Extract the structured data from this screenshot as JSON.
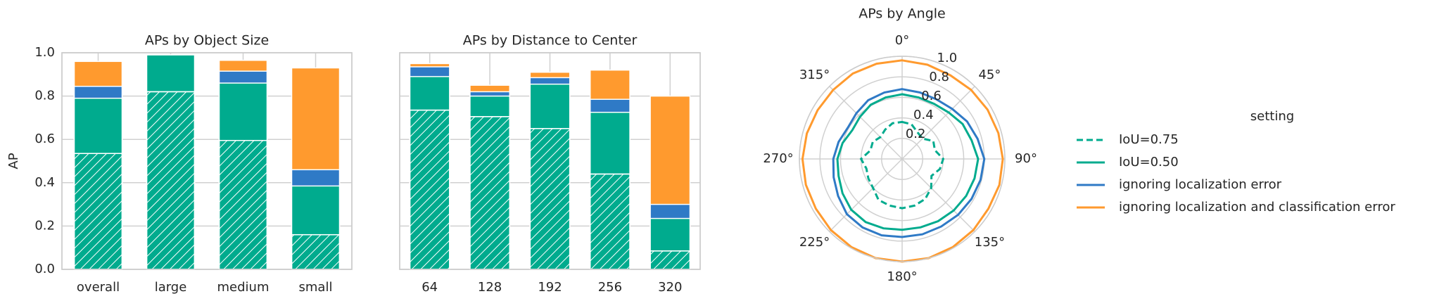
{
  "chart_data": [
    {
      "type": "bar",
      "title": "APs by Object Size",
      "ylabel": "AP",
      "categories": [
        "overall",
        "large",
        "medium",
        "small"
      ],
      "series": [
        {
          "color": "#00ab8e",
          "hatch": true,
          "values": [
            0.535,
            0.82,
            0.595,
            0.16
          ]
        },
        {
          "color": "#00ab8e",
          "values": [
            0.79,
            0.99,
            0.86,
            0.385
          ]
        },
        {
          "color": "#2f7ac6",
          "values": [
            0.845,
            0.99,
            0.915,
            0.46
          ]
        },
        {
          "color": "#ff9a2e",
          "values": [
            0.96,
            0.99,
            0.965,
            0.93
          ]
        }
      ],
      "ylim": [
        0,
        1
      ],
      "yticks": [
        {
          "value": 0,
          "label": "0.0"
        },
        0.2,
        0.4,
        0.6,
        0.8,
        {
          "value": 1,
          "label": "1.0"
        }
      ],
      "grid": true
    },
    {
      "type": "bar",
      "title": "APs by Distance to Center",
      "categories": [
        "64",
        "128",
        "192",
        "256",
        "320"
      ],
      "series": [
        {
          "color": "#00ab8e",
          "hatch": true,
          "values": [
            0.735,
            0.705,
            0.65,
            0.44,
            0.085
          ]
        },
        {
          "color": "#00ab8e",
          "values": [
            0.89,
            0.8,
            0.855,
            0.725,
            0.235
          ]
        },
        {
          "color": "#2f7ac6",
          "values": [
            0.935,
            0.82,
            0.885,
            0.785,
            0.3
          ]
        },
        {
          "color": "#ff9a2e",
          "values": [
            0.95,
            0.85,
            0.91,
            0.92,
            0.8
          ]
        }
      ],
      "ylim": [
        0,
        1
      ],
      "grid": true
    },
    {
      "type": "polar",
      "title": "APs by Angle",
      "legend_title": "setting",
      "x": [
        0,
        15,
        30,
        45,
        60,
        75,
        90,
        105,
        120,
        135,
        150,
        165,
        180,
        195,
        210,
        225,
        240,
        255,
        270,
        285,
        300,
        315,
        330,
        345
      ],
      "series": [
        {
          "name": "IoU=0.75",
          "color": "#00ab8e",
          "dash": true,
          "values": [
            0.36,
            0.35,
            0.3,
            0.28,
            0.35,
            0.33,
            0.4,
            0.38,
            0.33,
            0.4,
            0.45,
            0.47,
            0.48,
            0.47,
            0.46,
            0.4,
            0.38,
            0.36,
            0.4,
            0.32,
            0.33,
            0.3,
            0.33,
            0.36
          ]
        },
        {
          "name": "IoU=0.50",
          "color": "#00ab8e",
          "values": [
            0.63,
            0.62,
            0.62,
            0.64,
            0.68,
            0.7,
            0.74,
            0.73,
            0.72,
            0.71,
            0.7,
            0.69,
            0.69,
            0.7,
            0.71,
            0.7,
            0.67,
            0.64,
            0.63,
            0.6,
            0.56,
            0.58,
            0.61,
            0.62
          ]
        },
        {
          "name": "ignoring localization error",
          "color": "#2f7ac6",
          "values": [
            0.68,
            0.67,
            0.67,
            0.69,
            0.73,
            0.76,
            0.8,
            0.79,
            0.78,
            0.77,
            0.76,
            0.76,
            0.76,
            0.77,
            0.77,
            0.76,
            0.72,
            0.69,
            0.67,
            0.64,
            0.61,
            0.63,
            0.66,
            0.67
          ]
        },
        {
          "name": "ignoring localization and classification error",
          "color": "#ff9a2e",
          "values": [
            0.96,
            0.95,
            0.94,
            0.95,
            0.96,
            0.97,
            0.98,
            0.98,
            0.97,
            0.98,
            0.99,
            1.0,
            1.0,
            1.0,
            0.99,
            0.98,
            0.97,
            0.97,
            0.97,
            0.96,
            0.95,
            0.95,
            0.96,
            0.96
          ]
        }
      ],
      "rlim": [
        0,
        1
      ],
      "rticks": [
        0.2,
        0.4,
        0.6,
        0.8,
        {
          "value": 1,
          "label": "1.0"
        }
      ],
      "xticks": [
        {
          "value": 0,
          "label": "0°"
        },
        {
          "value": 45,
          "label": "45°"
        },
        {
          "value": 90,
          "label": "90°"
        },
        {
          "value": 135,
          "label": "135°"
        },
        {
          "value": 180,
          "label": "180°"
        },
        {
          "value": 225,
          "label": "225°"
        },
        {
          "value": 270,
          "label": "270°"
        },
        {
          "value": 315,
          "label": "315°"
        }
      ],
      "grid": true
    }
  ]
}
